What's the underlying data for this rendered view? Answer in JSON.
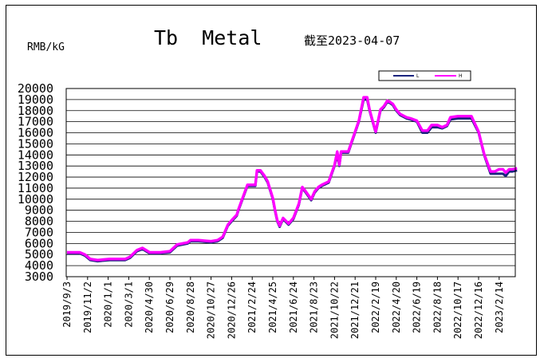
{
  "chart_data": {
    "type": "line",
    "title": "Tb  Metal",
    "date_note": "截至2023-04-07",
    "ylabel": "RMB/kG",
    "ylim": [
      3000,
      20000
    ],
    "y_ticks": [
      "20000",
      "19000",
      "18000",
      "17000",
      "16000",
      "15000",
      "14000",
      "13000",
      "12000",
      "11000",
      "10000",
      "9000",
      "8000",
      "7000",
      "6000",
      "5000",
      "4000",
      "3000"
    ],
    "x_ticks": [
      "2019/9/3",
      "2019/11/2",
      "2020/1/1",
      "2020/3/1",
      "2020/4/30",
      "2020/6/29",
      "2020/8/28",
      "2020/10/27",
      "2020/12/26",
      "2021/2/24",
      "2021/4/25",
      "2021/6/24",
      "2021/8/23",
      "2021/10/22",
      "2021/12/21",
      "2022/2/19",
      "2022/4/20",
      "2022/6/19",
      "2022/8/18",
      "2022/10/17",
      "2022/12/16",
      "2023/2/14"
    ],
    "grid": "horizontal",
    "legend_position": "top-right",
    "series": [
      {
        "name": "L",
        "color": "#1a237e",
        "x": [
          "2019/9/3",
          "2019/10/10",
          "2019/10/25",
          "2019/11/10",
          "2019/12/1",
          "2020/1/5",
          "2020/2/5",
          "2020/2/20",
          "2020/3/5",
          "2020/3/25",
          "2020/4/10",
          "2020/5/1",
          "2020/5/15",
          "2020/6/1",
          "2020/6/29",
          "2020/7/20",
          "2020/8/20",
          "2020/8/28",
          "2020/9/20",
          "2020/10/27",
          "2020/11/15",
          "2020/11/30",
          "2020/12/15",
          "2020/12/26",
          "2021/1/10",
          "2021/1/15",
          "2021/2/10",
          "2021/2/24",
          "2021/3/5",
          "2021/3/10",
          "2021/3/20",
          "2021/4/1",
          "2021/4/10",
          "2021/4/25",
          "2021/5/1",
          "2021/5/8",
          "2021/5/15",
          "2021/5/25",
          "2021/6/10",
          "2021/6/24",
          "2021/7/10",
          "2021/7/20",
          "2021/7/30",
          "2021/8/15",
          "2021/8/25",
          "2021/9/5",
          "2021/9/15",
          "2021/10/5",
          "2021/10/22",
          "2021/10/30",
          "2021/11/5",
          "2021/11/10",
          "2021/11/15",
          "2021/12/1",
          "2021/12/21",
          "2022/1/1",
          "2022/1/15",
          "2022/1/25",
          "2022/2/1",
          "2022/2/10",
          "2022/2/19",
          "2022/3/5",
          "2022/3/15",
          "2022/3/25",
          "2022/4/1",
          "2022/4/10",
          "2022/4/20",
          "2022/5/1",
          "2022/5/20",
          "2022/6/1",
          "2022/6/19",
          "2022/7/5",
          "2022/7/20",
          "2022/8/1",
          "2022/8/18",
          "2022/9/1",
          "2022/9/15",
          "2022/9/25",
          "2022/10/17",
          "2022/11/5",
          "2022/11/25",
          "2022/12/16",
          "2023/1/1",
          "2023/1/20",
          "2023/2/1",
          "2023/2/14",
          "2023/2/25",
          "2023/3/5",
          "2023/3/15",
          "2023/3/25",
          "2023/4/7"
        ],
        "values": [
          5100,
          5100,
          4900,
          4500,
          4400,
          4500,
          4500,
          4500,
          4700,
          5300,
          5500,
          5100,
          5100,
          5100,
          5200,
          5800,
          6000,
          6200,
          6200,
          6100,
          6200,
          6500,
          7600,
          8000,
          8500,
          9000,
          11200,
          11200,
          11200,
          12500,
          12500,
          12000,
          11500,
          10000,
          9000,
          8000,
          7500,
          8200,
          7700,
          8200,
          9500,
          11000,
          10600,
          9900,
          10600,
          11000,
          11200,
          11500,
          13000,
          14000,
          13000,
          14200,
          14200,
          14200,
          16000,
          17000,
          19000,
          19000,
          18000,
          17000,
          16000,
          18000,
          18300,
          18800,
          18700,
          18500,
          18000,
          17600,
          17300,
          17200,
          17000,
          16000,
          16000,
          16500,
          16500,
          16400,
          16600,
          17200,
          17300,
          17300,
          17300,
          16000,
          14000,
          12300,
          12300,
          12300,
          12300,
          12100,
          12500,
          12500,
          12600
        ]
      },
      {
        "name": "H",
        "color": "#ff00ff",
        "x": [
          "2019/9/3",
          "2019/10/10",
          "2019/10/25",
          "2019/11/10",
          "2019/12/1",
          "2020/1/5",
          "2020/2/5",
          "2020/2/20",
          "2020/3/5",
          "2020/3/25",
          "2020/4/10",
          "2020/5/1",
          "2020/5/15",
          "2020/6/1",
          "2020/6/29",
          "2020/7/20",
          "2020/8/20",
          "2020/8/28",
          "2020/9/20",
          "2020/10/27",
          "2020/11/15",
          "2020/11/30",
          "2020/12/15",
          "2020/12/26",
          "2021/1/10",
          "2021/1/15",
          "2021/2/10",
          "2021/2/24",
          "2021/3/5",
          "2021/3/10",
          "2021/3/20",
          "2021/4/1",
          "2021/4/10",
          "2021/4/25",
          "2021/5/1",
          "2021/5/8",
          "2021/5/15",
          "2021/5/25",
          "2021/6/10",
          "2021/6/24",
          "2021/7/10",
          "2021/7/20",
          "2021/7/30",
          "2021/8/15",
          "2021/8/25",
          "2021/9/5",
          "2021/9/15",
          "2021/10/5",
          "2021/10/22",
          "2021/10/30",
          "2021/11/5",
          "2021/11/10",
          "2021/11/15",
          "2021/12/1",
          "2021/12/21",
          "2022/1/1",
          "2022/1/15",
          "2022/1/25",
          "2022/2/1",
          "2022/2/10",
          "2022/2/19",
          "2022/3/5",
          "2022/3/15",
          "2022/3/25",
          "2022/4/1",
          "2022/4/10",
          "2022/4/20",
          "2022/5/1",
          "2022/5/20",
          "2022/6/1",
          "2022/6/19",
          "2022/7/5",
          "2022/7/20",
          "2022/8/1",
          "2022/8/18",
          "2022/9/1",
          "2022/9/15",
          "2022/9/25",
          "2022/10/17",
          "2022/11/5",
          "2022/11/25",
          "2022/12/16",
          "2023/1/1",
          "2023/1/20",
          "2023/2/1",
          "2023/2/14",
          "2023/2/25",
          "2023/3/5",
          "2023/3/15",
          "2023/3/25",
          "2023/4/7"
        ],
        "values": [
          5200,
          5200,
          5000,
          4600,
          4500,
          4600,
          4600,
          4600,
          4800,
          5400,
          5600,
          5200,
          5200,
          5200,
          5300,
          5900,
          6100,
          6300,
          6300,
          6200,
          6300,
          6600,
          7700,
          8100,
          8600,
          9100,
          11300,
          11300,
          11300,
          12600,
          12600,
          12100,
          11600,
          10100,
          9100,
          8100,
          7600,
          8300,
          7800,
          8300,
          9600,
          11100,
          10700,
          10000,
          10700,
          11100,
          11300,
          11600,
          13100,
          14300,
          13100,
          14300,
          14300,
          14300,
          16100,
          17100,
          19200,
          19200,
          18100,
          17100,
          16100,
          18100,
          18400,
          18900,
          18800,
          18600,
          18100,
          17700,
          17400,
          17300,
          17100,
          16200,
          16200,
          16700,
          16700,
          16500,
          16700,
          17400,
          17500,
          17500,
          17500,
          16100,
          14100,
          12500,
          12500,
          12700,
          12700,
          12400,
          12700,
          12700,
          12800
        ]
      }
    ]
  }
}
